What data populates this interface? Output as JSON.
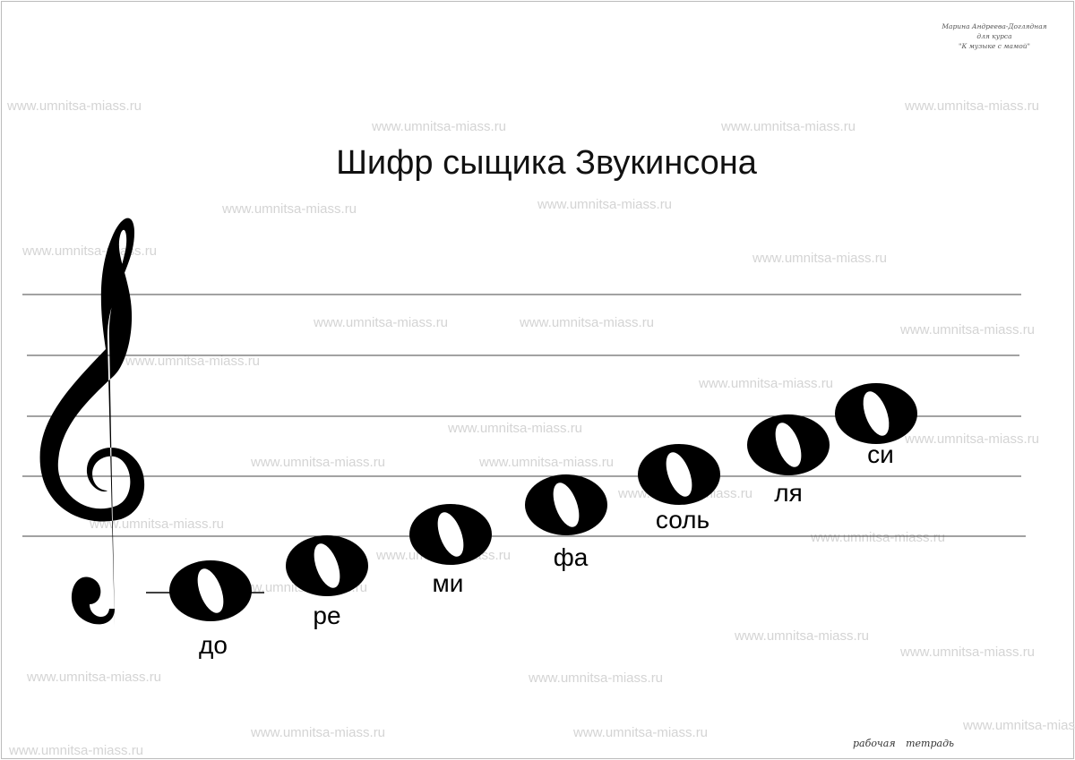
{
  "title": "Шифр  сыщика Звукинсона",
  "author": [
    "Марина Андреева-Доглядная",
    "для курса",
    "\"К музыке с мамой\""
  ],
  "footer": "рабочая тетрадь",
  "watermark": "www.umnitsa-miass.ru",
  "notes": [
    {
      "label": "до"
    },
    {
      "label": "ре"
    },
    {
      "label": "ми"
    },
    {
      "label": "фа"
    },
    {
      "label": "соль"
    },
    {
      "label": "ля"
    },
    {
      "label": "си"
    }
  ]
}
